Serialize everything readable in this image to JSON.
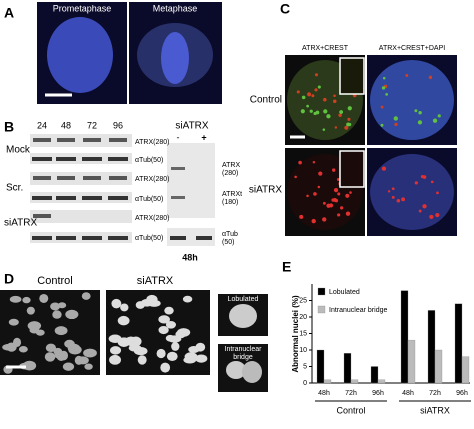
{
  "panels": {
    "a": {
      "letter": "A",
      "titles": [
        "Prometaphase",
        "Metaphase"
      ]
    },
    "b": {
      "letter": "B",
      "lanes": [
        "24",
        "48",
        "72",
        "96"
      ],
      "rows": [
        "Mock",
        "Scr.",
        "siATRX"
      ],
      "band_labels": [
        "ATRX(280)",
        "αTub(50)",
        "ATRX(280)",
        "αTub(50)",
        "ATRX(280)",
        "αTub(50)"
      ],
      "right_title": "siATRX",
      "right_lanes": [
        "-",
        "+"
      ],
      "right_labels": [
        "ATRX",
        "(280)",
        "ATRXt",
        "(180)",
        "αTub",
        "(50)"
      ],
      "right_time": "48h"
    },
    "c": {
      "letter": "C",
      "titles": [
        "ATRX+CREST",
        "ATRX+CREST+DAPI"
      ],
      "rows": [
        "Control",
        "siATRX"
      ]
    },
    "d": {
      "letter": "D",
      "titles": [
        "Control",
        "siATRX"
      ],
      "insets": [
        "Lobulated",
        "Intranuclear",
        "bridge"
      ]
    },
    "e": {
      "letter": "E"
    }
  },
  "chart_data": {
    "type": "bar",
    "ylabel": "Abnormal nuclei (%)",
    "categories": [
      "48h",
      "72h",
      "96h",
      "48h",
      "72h",
      "96h"
    ],
    "groups": [
      "Control",
      "siATRX"
    ],
    "series": [
      {
        "name": "Lobulated",
        "color": "#000000",
        "values": [
          10,
          9,
          5,
          28,
          22,
          24
        ]
      },
      {
        "name": "Intranuclear bridge",
        "color": "#bbbbbb",
        "values": [
          1,
          1,
          1,
          13,
          10,
          8
        ]
      }
    ],
    "ylim": [
      0,
      30
    ],
    "yticks": [
      0,
      5,
      10,
      15,
      20,
      25
    ]
  }
}
